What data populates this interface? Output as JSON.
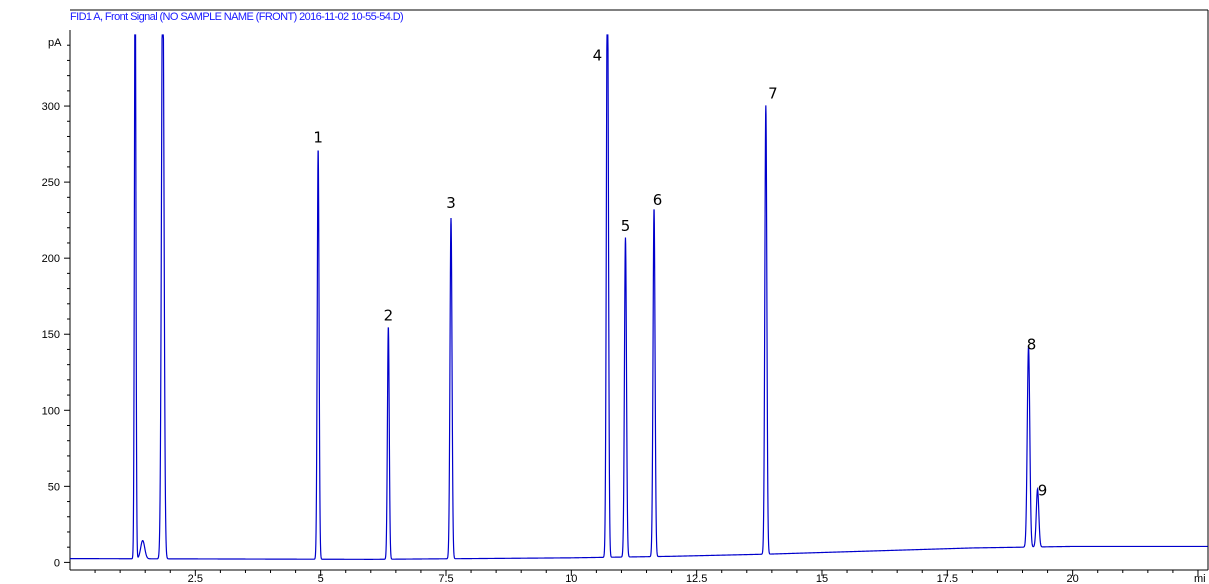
{
  "chart_data": {
    "type": "line",
    "title": "FID1 A, Front Signal (NO SAMPLE NAME (FRONT) 2016-11-02 10-55-54.D)",
    "ylabel": "pA",
    "xlabel": "mi",
    "xlim": [
      0,
      22.7
    ],
    "ylim": [
      -5,
      350
    ],
    "x_ticks": [
      2.5,
      5,
      7.5,
      10,
      12.5,
      15,
      17.5,
      20
    ],
    "x_tick_labels": [
      "2.5",
      "5",
      "7.5",
      "10",
      "12.5",
      "15",
      "17.5",
      "20"
    ],
    "y_ticks": [
      0,
      50,
      100,
      150,
      200,
      250,
      300
    ],
    "y_tick_labels": [
      "0",
      "50",
      "100",
      "150",
      "200",
      "250",
      "300"
    ],
    "grid": false,
    "line_color": "#0000cc",
    "baseline": [
      [
        0,
        2.5
      ],
      [
        6.0,
        2.0
      ],
      [
        10.0,
        3.0
      ],
      [
        12.0,
        4.0
      ],
      [
        14.0,
        5.5
      ],
      [
        16.0,
        7.5
      ],
      [
        18.0,
        9.5
      ],
      [
        20.0,
        10.5
      ],
      [
        22.7,
        10.5
      ]
    ],
    "series": [
      {
        "peaks": [
          {
            "x": 1.3,
            "height": 400,
            "width": 0.015
          },
          {
            "x": 1.85,
            "height": 400,
            "width": 0.025
          },
          {
            "x": 1.45,
            "height": 12,
            "width": 0.04
          },
          {
            "x": 4.95,
            "height": 270,
            "width": 0.018
          },
          {
            "x": 6.35,
            "height": 153,
            "width": 0.018
          },
          {
            "x": 7.6,
            "height": 224,
            "width": 0.02
          },
          {
            "x": 10.72,
            "height": 400,
            "width": 0.02
          },
          {
            "x": 11.08,
            "height": 210,
            "width": 0.02
          },
          {
            "x": 11.65,
            "height": 229,
            "width": 0.02
          },
          {
            "x": 13.88,
            "height": 295,
            "width": 0.02
          },
          {
            "x": 19.12,
            "height": 132,
            "width": 0.025
          },
          {
            "x": 19.3,
            "height": 38,
            "width": 0.025
          }
        ]
      }
    ],
    "annotations": [
      {
        "text": "1",
        "x": 4.95,
        "y": 276
      },
      {
        "text": "2",
        "x": 6.35,
        "y": 159
      },
      {
        "text": "3",
        "x": 7.6,
        "y": 233
      },
      {
        "text": "4",
        "x": 10.52,
        "y": 330
      },
      {
        "text": "5",
        "x": 11.08,
        "y": 218
      },
      {
        "text": "6",
        "x": 11.72,
        "y": 235
      },
      {
        "text": "7",
        "x": 14.02,
        "y": 305
      },
      {
        "text": "8",
        "x": 19.18,
        "y": 140
      },
      {
        "text": "9",
        "x": 19.4,
        "y": 44
      }
    ]
  }
}
